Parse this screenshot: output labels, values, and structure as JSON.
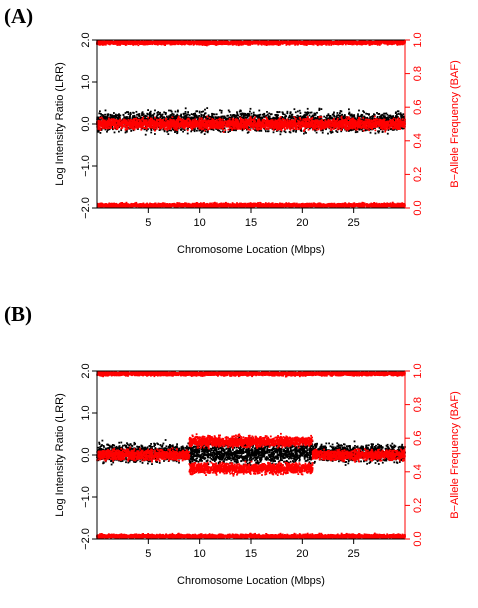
{
  "colors": {
    "lrr": "#000000",
    "baf": "#ff0000"
  },
  "chart_data": [
    {
      "type": "scatter",
      "panel_label": "(A)",
      "xlabel": "Chromosome Location (Mbps)",
      "ylabel_left": "Log Intensity Ratio (LRR)",
      "ylabel_right": "B−Allele Frequency (BAF)",
      "xlim": [
        0,
        30
      ],
      "ylim_left": [
        -2.0,
        2.0
      ],
      "ylim_right": [
        0.0,
        1.0
      ],
      "x_ticks": [
        5,
        10,
        15,
        20,
        25
      ],
      "x_tick_labels": [
        "5",
        "10",
        "15",
        "20",
        "25"
      ],
      "y_left_ticks": [
        -2.0,
        -1.0,
        0.0,
        1.0,
        2.0
      ],
      "y_left_tick_labels": [
        "−2.0",
        "−1.0",
        "0.0",
        "1.0",
        "2.0"
      ],
      "y_right_ticks": [
        0.0,
        0.2,
        0.4,
        0.6,
        0.8,
        1.0
      ],
      "y_right_tick_labels": [
        "0.0",
        "0.2",
        "0.4",
        "0.6",
        "0.8",
        "1.0"
      ],
      "series": [
        {
          "axis": "left",
          "color": "#000000",
          "segments": [
            {
              "x_start": 0,
              "x_end": 30,
              "center": 0.05,
              "spread": 0.22
            }
          ]
        },
        {
          "axis": "right",
          "color": "#ff0000",
          "segments": [
            {
              "x_start": 0,
              "x_end": 30,
              "center": 0.985,
              "spread": 0.012
            },
            {
              "x_start": 0,
              "x_end": 30,
              "center": 0.015,
              "spread": 0.012
            },
            {
              "x_start": 0,
              "x_end": 30,
              "center": 0.5,
              "spread": 0.03
            }
          ]
        }
      ]
    },
    {
      "type": "scatter",
      "panel_label": "(B)",
      "xlabel": "Chromosome Location (Mbps)",
      "ylabel_left": "Log Intensity Ratio (LRR)",
      "ylabel_right": "B−Allele Frequency (BAF)",
      "xlim": [
        0,
        30
      ],
      "ylim_left": [
        -2.0,
        2.0
      ],
      "ylim_right": [
        0.0,
        1.0
      ],
      "x_ticks": [
        5,
        10,
        15,
        20,
        25
      ],
      "x_tick_labels": [
        "5",
        "10",
        "15",
        "20",
        "25"
      ],
      "y_left_ticks": [
        -2.0,
        -1.0,
        0.0,
        1.0,
        2.0
      ],
      "y_left_tick_labels": [
        "−2.0",
        "−1.0",
        "0.0",
        "1.0",
        "2.0"
      ],
      "y_right_ticks": [
        0.0,
        0.2,
        0.4,
        0.6,
        0.8,
        1.0
      ],
      "y_right_tick_labels": [
        "0.0",
        "0.2",
        "0.4",
        "0.6",
        "0.8",
        "1.0"
      ],
      "series": [
        {
          "axis": "left",
          "color": "#000000",
          "segments": [
            {
              "x_start": 0,
              "x_end": 9,
              "center": 0.05,
              "spread": 0.2
            },
            {
              "x_start": 9,
              "x_end": 21,
              "center": 0.05,
              "spread": 0.26
            },
            {
              "x_start": 21,
              "x_end": 30,
              "center": 0.05,
              "spread": 0.2
            }
          ]
        },
        {
          "axis": "right",
          "color": "#ff0000",
          "segments": [
            {
              "x_start": 0,
              "x_end": 30,
              "center": 0.985,
              "spread": 0.012
            },
            {
              "x_start": 0,
              "x_end": 30,
              "center": 0.015,
              "spread": 0.012
            },
            {
              "x_start": 0,
              "x_end": 9,
              "center": 0.5,
              "spread": 0.03
            },
            {
              "x_start": 9,
              "x_end": 21,
              "center": 0.58,
              "spread": 0.03
            },
            {
              "x_start": 9,
              "x_end": 21,
              "center": 0.42,
              "spread": 0.03
            },
            {
              "x_start": 21,
              "x_end": 30,
              "center": 0.5,
              "spread": 0.03
            }
          ]
        }
      ]
    }
  ]
}
